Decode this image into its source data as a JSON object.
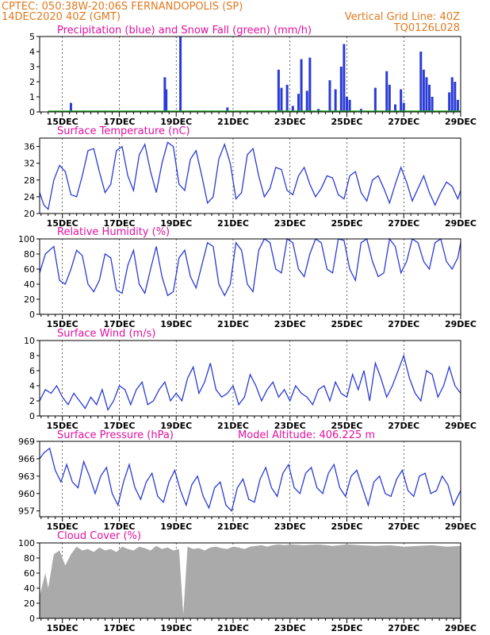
{
  "header": {
    "line1_left": "CPTEC:   050:38W-20:06S   FERNANDOPOLIS (SP)",
    "line2_left": "14DEC2020 40Z (GMT)",
    "line2_right": "Vertical Grid Line: 40Z",
    "line3_right": "TQ0126L028"
  },
  "colors": {
    "header": "#e07a1f",
    "title": "#e0119e",
    "line": "#2a3bd6",
    "precip": "#2a3bd6",
    "snow": "#22aa22",
    "cloud": "#aaaaaa"
  },
  "chart_data": [
    {
      "type": "bar",
      "title": "Precipitation (blue) and Snow Fall (green) (mm/h)",
      "ylim": [
        0,
        5
      ],
      "yticks": [
        0,
        1,
        2,
        3,
        4,
        5
      ],
      "xticks": [
        "15DEC",
        "17DEC",
        "19DEC",
        "21DEC",
        "23DEC",
        "25DEC",
        "27DEC",
        "29DEC"
      ],
      "series": [
        {
          "name": "Precipitation",
          "x": [
            15.3,
            18.6,
            18.65,
            19.15,
            20.8,
            22.6,
            22.7,
            22.9,
            23.1,
            23.3,
            23.4,
            23.6,
            23.7,
            24.0,
            24.1,
            24.4,
            24.6,
            24.8,
            24.9,
            25.0,
            25.1,
            25.5,
            26.0,
            26.4,
            26.5,
            26.7,
            26.9,
            27.0,
            27.6,
            27.7,
            27.8,
            27.9,
            28.0,
            28.6,
            28.7,
            28.8,
            28.9
          ],
          "values": [
            0.6,
            2.3,
            1.5,
            5.0,
            0.3,
            2.8,
            1.6,
            1.8,
            0.4,
            1.2,
            3.5,
            1.4,
            3.6,
            0.2,
            0.1,
            2.1,
            1.5,
            3.0,
            4.5,
            1.0,
            0.8,
            0.2,
            1.6,
            2.7,
            1.8,
            0.5,
            1.5,
            0.6,
            4.0,
            2.8,
            2.3,
            1.8,
            1.0,
            1.3,
            2.3,
            2.0,
            0.8
          ]
        },
        {
          "name": "Snow Fall",
          "x": [
            14.5,
            29.0
          ],
          "values": [
            0.05,
            0.05
          ]
        }
      ]
    },
    {
      "type": "line",
      "title": "Surface Temperature (nC)",
      "ylim": [
        20,
        38
      ],
      "yticks": [
        20,
        24,
        28,
        32,
        36
      ],
      "xticks": [
        "15DEC",
        "17DEC",
        "19DEC",
        "21DEC",
        "23DEC",
        "25DEC",
        "27DEC",
        "29DEC"
      ],
      "series": [
        {
          "name": "Temperature",
          "x": [
            14.2,
            14.35,
            14.5,
            14.7,
            14.9,
            15.1,
            15.3,
            15.5,
            15.7,
            15.9,
            16.1,
            16.3,
            16.5,
            16.7,
            16.9,
            17.1,
            17.3,
            17.5,
            17.7,
            17.9,
            18.1,
            18.3,
            18.5,
            18.7,
            18.9,
            19.1,
            19.3,
            19.5,
            19.7,
            19.9,
            20.1,
            20.3,
            20.5,
            20.7,
            20.9,
            21.1,
            21.3,
            21.5,
            21.7,
            21.9,
            22.1,
            22.3,
            22.5,
            22.7,
            22.9,
            23.1,
            23.3,
            23.5,
            23.7,
            23.9,
            24.1,
            24.3,
            24.5,
            24.7,
            24.9,
            25.1,
            25.3,
            25.5,
            25.7,
            25.9,
            26.1,
            26.3,
            26.5,
            26.7,
            26.9,
            27.1,
            27.3,
            27.5,
            27.7,
            27.9,
            28.1,
            28.3,
            28.5,
            28.7,
            28.9,
            29.0
          ],
          "values": [
            25.0,
            22.0,
            21.0,
            28.0,
            31.5,
            30.0,
            24.5,
            24.0,
            29.0,
            35.0,
            35.5,
            30.0,
            25.0,
            27.0,
            35.0,
            36.0,
            29.0,
            25.5,
            34.0,
            36.5,
            30.0,
            25.0,
            32.0,
            37.0,
            36.0,
            27.0,
            25.5,
            33.0,
            35.0,
            29.0,
            22.5,
            24.0,
            33.0,
            36.5,
            32.0,
            23.5,
            25.0,
            34.0,
            35.5,
            29.0,
            24.0,
            26.0,
            31.0,
            30.5,
            25.5,
            24.5,
            29.0,
            31.0,
            27.0,
            24.0,
            26.0,
            29.0,
            28.5,
            24.5,
            23.5,
            29.0,
            30.0,
            25.0,
            23.0,
            28.0,
            29.0,
            26.0,
            22.5,
            27.0,
            31.0,
            27.5,
            23.0,
            26.0,
            29.0,
            25.0,
            22.0,
            25.0,
            27.5,
            26.5,
            23.5,
            25.5
          ]
        }
      ]
    },
    {
      "type": "line",
      "title": "Relative Humidity (%)",
      "ylim": [
        0,
        100
      ],
      "yticks": [
        0,
        20,
        40,
        60,
        80,
        100
      ],
      "xticks": [
        "15DEC",
        "17DEC",
        "19DEC",
        "21DEC",
        "23DEC",
        "25DEC",
        "27DEC",
        "29DEC"
      ],
      "series": [
        {
          "name": "Relative Humidity",
          "x": [
            14.2,
            14.4,
            14.7,
            14.9,
            15.1,
            15.3,
            15.5,
            15.7,
            15.9,
            16.1,
            16.3,
            16.5,
            16.7,
            16.9,
            17.1,
            17.3,
            17.5,
            17.7,
            17.9,
            18.1,
            18.3,
            18.5,
            18.7,
            18.9,
            19.1,
            19.3,
            19.5,
            19.7,
            19.9,
            20.1,
            20.3,
            20.5,
            20.7,
            20.9,
            21.1,
            21.3,
            21.5,
            21.7,
            21.9,
            22.1,
            22.3,
            22.5,
            22.7,
            22.9,
            23.1,
            23.3,
            23.5,
            23.7,
            23.9,
            24.1,
            24.3,
            24.5,
            24.7,
            24.9,
            25.1,
            25.3,
            25.5,
            25.7,
            25.9,
            26.1,
            26.3,
            26.5,
            26.7,
            26.9,
            27.1,
            27.3,
            27.5,
            27.7,
            27.9,
            28.1,
            28.3,
            28.5,
            28.7,
            28.9,
            29.0
          ],
          "values": [
            55.0,
            80.0,
            90.0,
            45.0,
            40.0,
            60.0,
            85.0,
            78.0,
            40.0,
            30.0,
            45.0,
            80.0,
            75.0,
            32.0,
            28.0,
            65.0,
            85.0,
            40.0,
            28.0,
            60.0,
            90.0,
            50.0,
            25.0,
            30.0,
            75.0,
            85.0,
            50.0,
            35.0,
            65.0,
            95.0,
            90.0,
            40.0,
            25.0,
            40.0,
            95.0,
            85.0,
            40.0,
            30.0,
            85.0,
            100.0,
            95.0,
            60.0,
            55.0,
            100.0,
            95.0,
            60.0,
            50.0,
            80.0,
            100.0,
            95.0,
            60.0,
            55.0,
            100.0,
            98.0,
            60.0,
            45.0,
            95.0,
            100.0,
            70.0,
            50.0,
            55.0,
            100.0,
            90.0,
            55.0,
            70.0,
            100.0,
            95.0,
            70.0,
            60.0,
            95.0,
            100.0,
            70.0,
            60.0,
            75.0,
            95.0
          ]
        }
      ]
    },
    {
      "type": "line",
      "title": "Surface Wind (m/s)",
      "ylim": [
        0,
        10
      ],
      "yticks": [
        0,
        2,
        4,
        6,
        8,
        10
      ],
      "xticks": [
        "15DEC",
        "17DEC",
        "19DEC",
        "21DEC",
        "23DEC",
        "25DEC",
        "27DEC",
        "29DEC"
      ],
      "series": [
        {
          "name": "Wind Speed",
          "x": [
            14.2,
            14.4,
            14.6,
            14.8,
            15.0,
            15.2,
            15.4,
            15.6,
            15.8,
            16.0,
            16.2,
            16.4,
            16.6,
            16.8,
            17.0,
            17.2,
            17.4,
            17.6,
            17.8,
            18.0,
            18.2,
            18.4,
            18.6,
            18.8,
            19.0,
            19.2,
            19.4,
            19.6,
            19.8,
            20.0,
            20.2,
            20.4,
            20.6,
            20.8,
            21.0,
            21.2,
            21.4,
            21.6,
            21.8,
            22.0,
            22.2,
            22.4,
            22.6,
            22.8,
            23.0,
            23.2,
            23.4,
            23.6,
            23.8,
            24.0,
            24.2,
            24.4,
            24.6,
            24.8,
            25.0,
            25.2,
            25.4,
            25.6,
            25.8,
            26.0,
            26.2,
            26.4,
            26.6,
            26.8,
            27.0,
            27.2,
            27.4,
            27.6,
            27.8,
            28.0,
            28.2,
            28.4,
            28.6,
            28.8,
            29.0
          ],
          "values": [
            2.0,
            3.5,
            3.0,
            4.0,
            2.5,
            1.5,
            3.0,
            2.0,
            1.0,
            2.5,
            1.5,
            3.5,
            0.8,
            2.0,
            4.0,
            3.5,
            1.5,
            3.5,
            4.5,
            1.5,
            2.0,
            3.5,
            4.5,
            2.0,
            3.0,
            2.0,
            5.0,
            6.5,
            3.0,
            4.5,
            7.0,
            3.5,
            2.5,
            3.0,
            4.0,
            1.5,
            2.5,
            5.5,
            4.0,
            2.0,
            3.5,
            4.5,
            2.5,
            3.5,
            2.0,
            4.0,
            3.0,
            2.5,
            1.5,
            3.5,
            4.0,
            2.0,
            4.5,
            3.0,
            2.5,
            5.5,
            3.5,
            6.0,
            2.0,
            7.0,
            5.0,
            2.5,
            4.0,
            6.0,
            8.0,
            5.0,
            3.0,
            2.0,
            6.0,
            5.5,
            2.5,
            4.0,
            6.5,
            4.0,
            3.0
          ]
        }
      ]
    },
    {
      "type": "line",
      "title": "Surface Pressure (hPa)",
      "subtitle": "Model Altitude: 406.225 m",
      "ylim": [
        956,
        969
      ],
      "yticks": [
        957,
        960,
        963,
        966,
        969
      ],
      "xticks": [
        "15DEC",
        "17DEC",
        "19DEC",
        "21DEC",
        "23DEC",
        "25DEC",
        "27DEC",
        "29DEC"
      ],
      "series": [
        {
          "name": "Pressure",
          "x": [
            14.2,
            14.35,
            14.55,
            14.75,
            14.95,
            15.15,
            15.35,
            15.55,
            15.75,
            15.95,
            16.15,
            16.35,
            16.55,
            16.75,
            16.95,
            17.15,
            17.35,
            17.55,
            17.75,
            17.95,
            18.15,
            18.35,
            18.55,
            18.75,
            18.95,
            19.15,
            19.35,
            19.55,
            19.75,
            19.95,
            20.15,
            20.35,
            20.55,
            20.75,
            20.95,
            21.15,
            21.35,
            21.55,
            21.75,
            21.95,
            22.15,
            22.35,
            22.55,
            22.75,
            22.95,
            23.15,
            23.35,
            23.55,
            23.75,
            23.95,
            24.15,
            24.35,
            24.55,
            24.75,
            24.95,
            25.15,
            25.35,
            25.55,
            25.75,
            25.95,
            26.15,
            26.35,
            26.55,
            26.75,
            26.95,
            27.15,
            27.35,
            27.55,
            27.75,
            27.95,
            28.15,
            28.35,
            28.55,
            28.75,
            28.95,
            29.0
          ],
          "values": [
            966.0,
            967.0,
            967.8,
            964.0,
            962.0,
            965.0,
            962.0,
            961.0,
            965.5,
            963.0,
            960.0,
            963.0,
            964.5,
            960.0,
            958.0,
            962.0,
            965.0,
            961.0,
            959.0,
            962.0,
            963.5,
            959.5,
            958.5,
            962.0,
            964.0,
            960.5,
            958.0,
            961.5,
            963.0,
            959.5,
            957.5,
            961.0,
            962.0,
            958.0,
            957.0,
            961.0,
            962.5,
            959.0,
            958.5,
            962.5,
            964.5,
            961.0,
            959.5,
            963.5,
            965.0,
            961.0,
            960.0,
            963.5,
            964.5,
            961.0,
            960.0,
            963.5,
            965.0,
            961.0,
            959.5,
            963.0,
            964.0,
            961.0,
            958.0,
            962.0,
            963.0,
            960.0,
            959.5,
            962.5,
            964.0,
            960.5,
            959.5,
            963.0,
            963.5,
            960.0,
            960.5,
            963.0,
            961.5,
            958.0,
            960.0,
            960.5
          ]
        }
      ]
    },
    {
      "type": "area",
      "title": "Cloud Cover (%)",
      "ylim": [
        0,
        100
      ],
      "yticks": [
        0,
        20,
        40,
        60,
        80,
        100
      ],
      "xticks": [
        "15DEC",
        "17DEC",
        "19DEC",
        "21DEC",
        "23DEC",
        "25DEC",
        "27DEC",
        "29DEC"
      ],
      "series": [
        {
          "name": "Cloud Cover",
          "x": [
            14.2,
            14.4,
            14.5,
            14.7,
            14.9,
            15.1,
            15.3,
            15.5,
            15.7,
            15.9,
            16.1,
            16.3,
            16.5,
            16.7,
            16.9,
            17.1,
            17.3,
            17.5,
            17.7,
            17.9,
            18.1,
            18.3,
            18.5,
            18.7,
            18.9,
            19.1,
            19.25,
            19.4,
            19.6,
            19.8,
            20.0,
            20.2,
            20.4,
            20.6,
            20.8,
            21.0,
            21.2,
            21.4,
            21.6,
            21.8,
            22.0,
            22.2,
            22.4,
            22.6,
            22.8,
            23.0,
            23.5,
            24.0,
            24.5,
            25.0,
            25.5,
            26.0,
            26.5,
            27.0,
            27.5,
            28.0,
            28.5,
            29.0
          ],
          "values": [
            30.0,
            60.0,
            40.0,
            85.0,
            90.0,
            70.0,
            85.0,
            95.0,
            90.0,
            92.0,
            88.0,
            94.0,
            90.0,
            92.0,
            88.0,
            95.0,
            92.0,
            90.0,
            95.0,
            93.0,
            90.0,
            96.0,
            92.0,
            94.0,
            90.0,
            92.0,
            5.0,
            95.0,
            92.0,
            93.0,
            90.0,
            94.0,
            95.0,
            93.0,
            92.0,
            95.0,
            94.0,
            92.0,
            95.0,
            96.0,
            97.0,
            95.0,
            97.0,
            98.0,
            97.0,
            98.0,
            97.0,
            98.0,
            96.0,
            98.0,
            97.0,
            96.0,
            97.0,
            95.0,
            96.0,
            97.0,
            95.0,
            96.0
          ]
        }
      ]
    }
  ]
}
